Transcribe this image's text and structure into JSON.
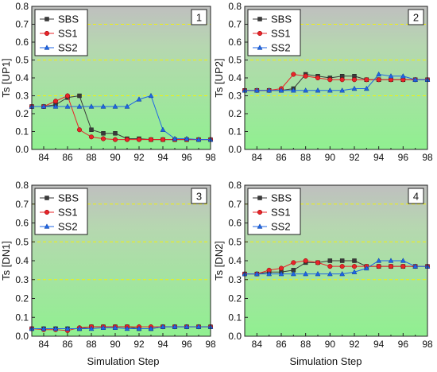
{
  "figure": {
    "xlabel": "Simulation Step",
    "colors": {
      "SBS": "#3a3a3a",
      "SS1": "#e8242a",
      "SS2": "#1f66e5",
      "ref": "#f2f20a",
      "bg_top": "#bfbfbf",
      "bg_bottom": "#90f090"
    }
  },
  "chart_data": [
    {
      "type": "line",
      "panel_label": "1",
      "ylabel": "Ts [UP1]",
      "xlabel": "",
      "xlim": [
        83,
        98
      ],
      "ylim": [
        0,
        0.8
      ],
      "xticks": [
        84,
        86,
        88,
        90,
        92,
        94,
        96,
        98
      ],
      "yticks": [
        0.0,
        0.1,
        0.2,
        0.3,
        0.4,
        0.5,
        0.6,
        0.7,
        0.8
      ],
      "reference_lines": [
        0.3,
        0.5,
        0.7
      ],
      "legend_position": "top-left",
      "x": [
        83,
        84,
        85,
        86,
        87,
        88,
        89,
        90,
        91,
        92,
        93,
        94,
        95,
        96,
        97,
        98
      ],
      "series": [
        {
          "name": "SBS",
          "marker": "square",
          "values": [
            0.24,
            0.24,
            0.25,
            0.29,
            0.3,
            0.11,
            0.09,
            0.09,
            0.06,
            0.06,
            0.055,
            0.055,
            0.055,
            0.055,
            0.055,
            0.055
          ]
        },
        {
          "name": "SS1",
          "marker": "circle",
          "values": [
            0.24,
            0.24,
            0.27,
            0.3,
            0.11,
            0.07,
            0.06,
            0.055,
            0.055,
            0.055,
            0.055,
            0.055,
            0.055,
            0.055,
            0.055,
            0.055
          ]
        },
        {
          "name": "SS2",
          "marker": "triangle",
          "values": [
            0.24,
            0.24,
            0.24,
            0.24,
            0.24,
            0.24,
            0.24,
            0.24,
            0.24,
            0.28,
            0.3,
            0.11,
            0.06,
            0.06,
            0.055,
            0.055
          ]
        }
      ]
    },
    {
      "type": "line",
      "panel_label": "2",
      "ylabel": "Ts [UP2]",
      "xlabel": "",
      "xlim": [
        83,
        98
      ],
      "ylim": [
        0,
        0.8
      ],
      "xticks": [
        84,
        86,
        88,
        90,
        92,
        94,
        96,
        98
      ],
      "yticks": [
        0.0,
        0.1,
        0.2,
        0.3,
        0.4,
        0.5,
        0.6,
        0.7,
        0.8
      ],
      "reference_lines": [
        0.3,
        0.5,
        0.7
      ],
      "legend_position": "top-left",
      "x": [
        83,
        84,
        85,
        86,
        87,
        88,
        89,
        90,
        91,
        92,
        93,
        94,
        95,
        96,
        97,
        98
      ],
      "series": [
        {
          "name": "SBS",
          "marker": "square",
          "values": [
            0.33,
            0.33,
            0.33,
            0.33,
            0.34,
            0.42,
            0.41,
            0.4,
            0.41,
            0.41,
            0.39,
            0.39,
            0.39,
            0.39,
            0.39,
            0.39
          ]
        },
        {
          "name": "SS1",
          "marker": "circle",
          "values": [
            0.33,
            0.33,
            0.33,
            0.34,
            0.42,
            0.41,
            0.4,
            0.39,
            0.39,
            0.39,
            0.39,
            0.39,
            0.39,
            0.39,
            0.39,
            0.39
          ]
        },
        {
          "name": "SS2",
          "marker": "triangle",
          "values": [
            0.33,
            0.33,
            0.33,
            0.33,
            0.33,
            0.33,
            0.33,
            0.33,
            0.33,
            0.34,
            0.34,
            0.42,
            0.41,
            0.41,
            0.39,
            0.39
          ]
        }
      ]
    },
    {
      "type": "line",
      "panel_label": "3",
      "ylabel": "Ts [DN1]",
      "xlabel": "Simulation Step",
      "xlim": [
        83,
        98
      ],
      "ylim": [
        0,
        0.8
      ],
      "xticks": [
        84,
        86,
        88,
        90,
        92,
        94,
        96,
        98
      ],
      "yticks": [
        0.0,
        0.1,
        0.2,
        0.3,
        0.4,
        0.5,
        0.6,
        0.7,
        0.8
      ],
      "reference_lines": [
        0.3,
        0.5,
        0.7
      ],
      "legend_position": "top-left",
      "x": [
        83,
        84,
        85,
        86,
        87,
        88,
        89,
        90,
        91,
        92,
        93,
        94,
        95,
        96,
        97,
        98
      ],
      "series": [
        {
          "name": "SBS",
          "marker": "square",
          "values": [
            0.04,
            0.04,
            0.04,
            0.04,
            0.04,
            0.05,
            0.05,
            0.05,
            0.05,
            0.04,
            0.04,
            0.05,
            0.05,
            0.05,
            0.05,
            0.05
          ]
        },
        {
          "name": "SS1",
          "marker": "circle",
          "values": [
            0.04,
            0.035,
            0.035,
            0.03,
            0.045,
            0.05,
            0.05,
            0.05,
            0.05,
            0.05,
            0.05,
            0.05,
            0.05,
            0.05,
            0.05,
            0.05
          ]
        },
        {
          "name": "SS2",
          "marker": "triangle",
          "values": [
            0.04,
            0.04,
            0.04,
            0.04,
            0.04,
            0.04,
            0.045,
            0.045,
            0.04,
            0.04,
            0.04,
            0.05,
            0.05,
            0.05,
            0.05,
            0.05
          ]
        }
      ]
    },
    {
      "type": "line",
      "panel_label": "4",
      "ylabel": "Ts [DN2]",
      "xlabel": "Simulation Step",
      "xlim": [
        83,
        98
      ],
      "ylim": [
        0,
        0.8
      ],
      "xticks": [
        84,
        86,
        88,
        90,
        92,
        94,
        96,
        98
      ],
      "yticks": [
        0.0,
        0.1,
        0.2,
        0.3,
        0.4,
        0.5,
        0.6,
        0.7,
        0.8
      ],
      "reference_lines": [
        0.3,
        0.5,
        0.7
      ],
      "legend_position": "top-left",
      "x": [
        83,
        84,
        85,
        86,
        87,
        88,
        89,
        90,
        91,
        92,
        93,
        94,
        95,
        96,
        97,
        98
      ],
      "series": [
        {
          "name": "SBS",
          "marker": "square",
          "values": [
            0.33,
            0.33,
            0.34,
            0.34,
            0.35,
            0.39,
            0.39,
            0.4,
            0.4,
            0.4,
            0.37,
            0.37,
            0.37,
            0.37,
            0.37,
            0.37
          ]
        },
        {
          "name": "SS1",
          "marker": "circle",
          "values": [
            0.33,
            0.33,
            0.35,
            0.36,
            0.39,
            0.4,
            0.39,
            0.37,
            0.37,
            0.37,
            0.37,
            0.37,
            0.37,
            0.37,
            0.37,
            0.37
          ]
        },
        {
          "name": "SS2",
          "marker": "triangle",
          "values": [
            0.33,
            0.33,
            0.33,
            0.33,
            0.33,
            0.33,
            0.33,
            0.33,
            0.33,
            0.34,
            0.36,
            0.4,
            0.4,
            0.4,
            0.37,
            0.37
          ]
        }
      ]
    }
  ]
}
